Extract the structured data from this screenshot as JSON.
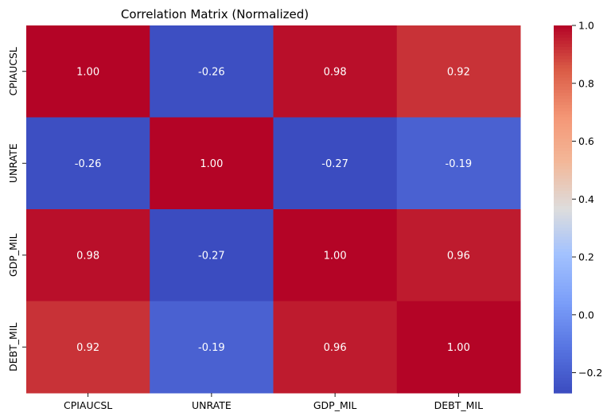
{
  "chart_data": {
    "type": "heatmap",
    "title": "Correlation Matrix (Normalized)",
    "x_categories": [
      "CPIAUCSL",
      "UNRATE",
      "GDP_MIL",
      "DEBT_MIL"
    ],
    "y_categories": [
      "CPIAUCSL",
      "UNRATE",
      "GDP_MIL",
      "DEBT_MIL"
    ],
    "values": [
      [
        1.0,
        -0.26,
        0.98,
        0.92
      ],
      [
        -0.26,
        1.0,
        -0.27,
        -0.19
      ],
      [
        0.98,
        -0.27,
        1.0,
        0.96
      ],
      [
        0.92,
        -0.19,
        0.96,
        1.0
      ]
    ],
    "cell_labels": [
      [
        "1.00",
        "-0.26",
        "0.98",
        "0.92"
      ],
      [
        "-0.26",
        "1.00",
        "-0.27",
        "-0.19"
      ],
      [
        "0.98",
        "-0.27",
        "1.00",
        "0.96"
      ],
      [
        "0.92",
        "-0.19",
        "0.96",
        "1.00"
      ]
    ],
    "colormap": "coolwarm",
    "color_range": [
      -0.27,
      1.0
    ],
    "colorbar_ticks": [
      1.0,
      0.8,
      0.6,
      0.4,
      0.2,
      0.0,
      -0.2
    ],
    "colorbar_tick_labels": [
      "1.0",
      "0.8",
      "0.6",
      "0.4",
      "0.2",
      "0.0",
      "−0.2"
    ],
    "colors": {
      "low": "#3b4cc0",
      "mid": "#dddddd",
      "high": "#b40426",
      "text": "#ffffff"
    }
  }
}
